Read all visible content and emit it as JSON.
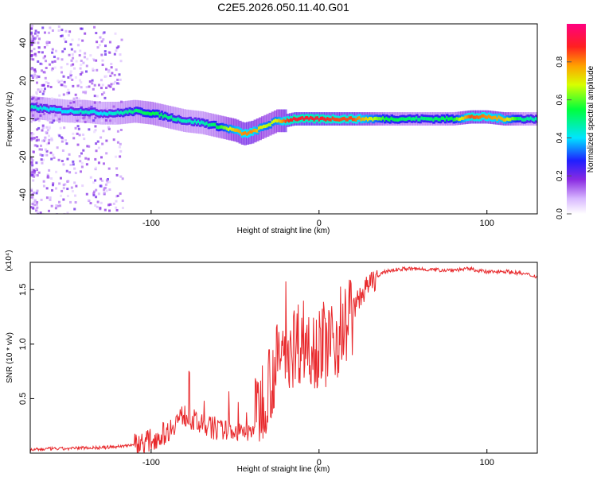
{
  "chart_data": [
    {
      "type": "heatmap",
      "title": "C2E5.2026.050.11.40.G01",
      "xlabel": "Height of straight line (km)",
      "ylabel": "Frequency (Hz)",
      "xlim": [
        -172,
        130
      ],
      "ylim": [
        -50,
        50
      ],
      "xticks": [
        -100,
        0,
        100
      ],
      "xtick_labels": [
        "-100",
        "0",
        "100"
      ],
      "yticks": [
        -40,
        -20,
        0,
        20,
        40
      ],
      "ytick_labels": [
        "-40",
        "-20",
        "0",
        "20",
        "40"
      ],
      "colorbar": {
        "label": "Normalized spectral amplitude",
        "range": [
          0,
          1
        ],
        "ticks": [
          0.0,
          0.2,
          0.4,
          0.6,
          0.8
        ],
        "tick_labels": [
          "0.0",
          "0.2",
          "0.4",
          "0.6",
          "0.8"
        ]
      },
      "ridge": {
        "x": [
          -172,
          -160,
          -150,
          -140,
          -130,
          -120,
          -110,
          -100,
          -90,
          -80,
          -70,
          -60,
          -55,
          -50,
          -45,
          -40,
          -35,
          -30,
          -25,
          -20,
          -15,
          -10,
          -5,
          0,
          10,
          20,
          30,
          40,
          60,
          80,
          90,
          100,
          110,
          120,
          130
        ],
        "freq": [
          6,
          5,
          4,
          4,
          3,
          3,
          4,
          3,
          1,
          -1,
          -2,
          -4,
          -5,
          -6,
          -8,
          -7,
          -5,
          -3,
          -1,
          -1,
          0,
          0,
          0,
          0,
          0,
          0,
          0,
          0,
          0,
          0,
          1,
          1,
          0,
          0,
          0
        ],
        "amplitude": [
          0.45,
          0.4,
          0.4,
          0.45,
          0.4,
          0.45,
          0.5,
          0.55,
          0.5,
          0.45,
          0.45,
          0.55,
          0.65,
          0.75,
          0.8,
          0.8,
          0.7,
          0.65,
          0.7,
          0.85,
          0.9,
          0.9,
          0.9,
          0.9,
          0.85,
          0.85,
          0.7,
          0.55,
          0.5,
          0.55,
          0.85,
          0.8,
          0.75,
          0.5,
          0.45
        ]
      }
    },
    {
      "type": "line",
      "title": "",
      "xlabel": "Height of straight line (km)",
      "ylabel": "SNR (10 * v/v)",
      "scale_label": "(x10⁴)",
      "xlim": [
        -172,
        130
      ],
      "ylim": [
        0,
        1.75
      ],
      "xticks": [
        -100,
        0,
        100
      ],
      "xtick_labels": [
        "-100",
        "0",
        "100"
      ],
      "yticks": [
        0.5,
        1.0,
        1.5
      ],
      "ytick_labels": [
        "0.5",
        "1.0",
        "1.5"
      ],
      "series": [
        {
          "name": "SNR",
          "color": "#e8282b",
          "x": [
            -172,
            -160,
            -150,
            -140,
            -130,
            -120,
            -110,
            -100,
            -90,
            -85,
            -80,
            -75,
            -70,
            -60,
            -50,
            -45,
            -40,
            -35,
            -30,
            -25,
            -20,
            -15,
            -10,
            -5,
            0,
            5,
            10,
            15,
            20,
            25,
            30,
            35,
            40,
            50,
            60,
            70,
            80,
            90,
            100,
            110,
            120,
            130
          ],
          "y": [
            0.03,
            0.04,
            0.04,
            0.05,
            0.05,
            0.06,
            0.08,
            0.12,
            0.2,
            0.3,
            0.35,
            0.3,
            0.25,
            0.22,
            0.2,
            0.18,
            0.2,
            0.45,
            0.65,
            0.8,
            0.95,
            1.0,
            1.05,
            1.0,
            1.0,
            1.0,
            1.05,
            1.15,
            1.3,
            1.45,
            1.55,
            1.62,
            1.67,
            1.69,
            1.69,
            1.68,
            1.68,
            1.69,
            1.66,
            1.67,
            1.65,
            1.62
          ]
        }
      ]
    }
  ]
}
